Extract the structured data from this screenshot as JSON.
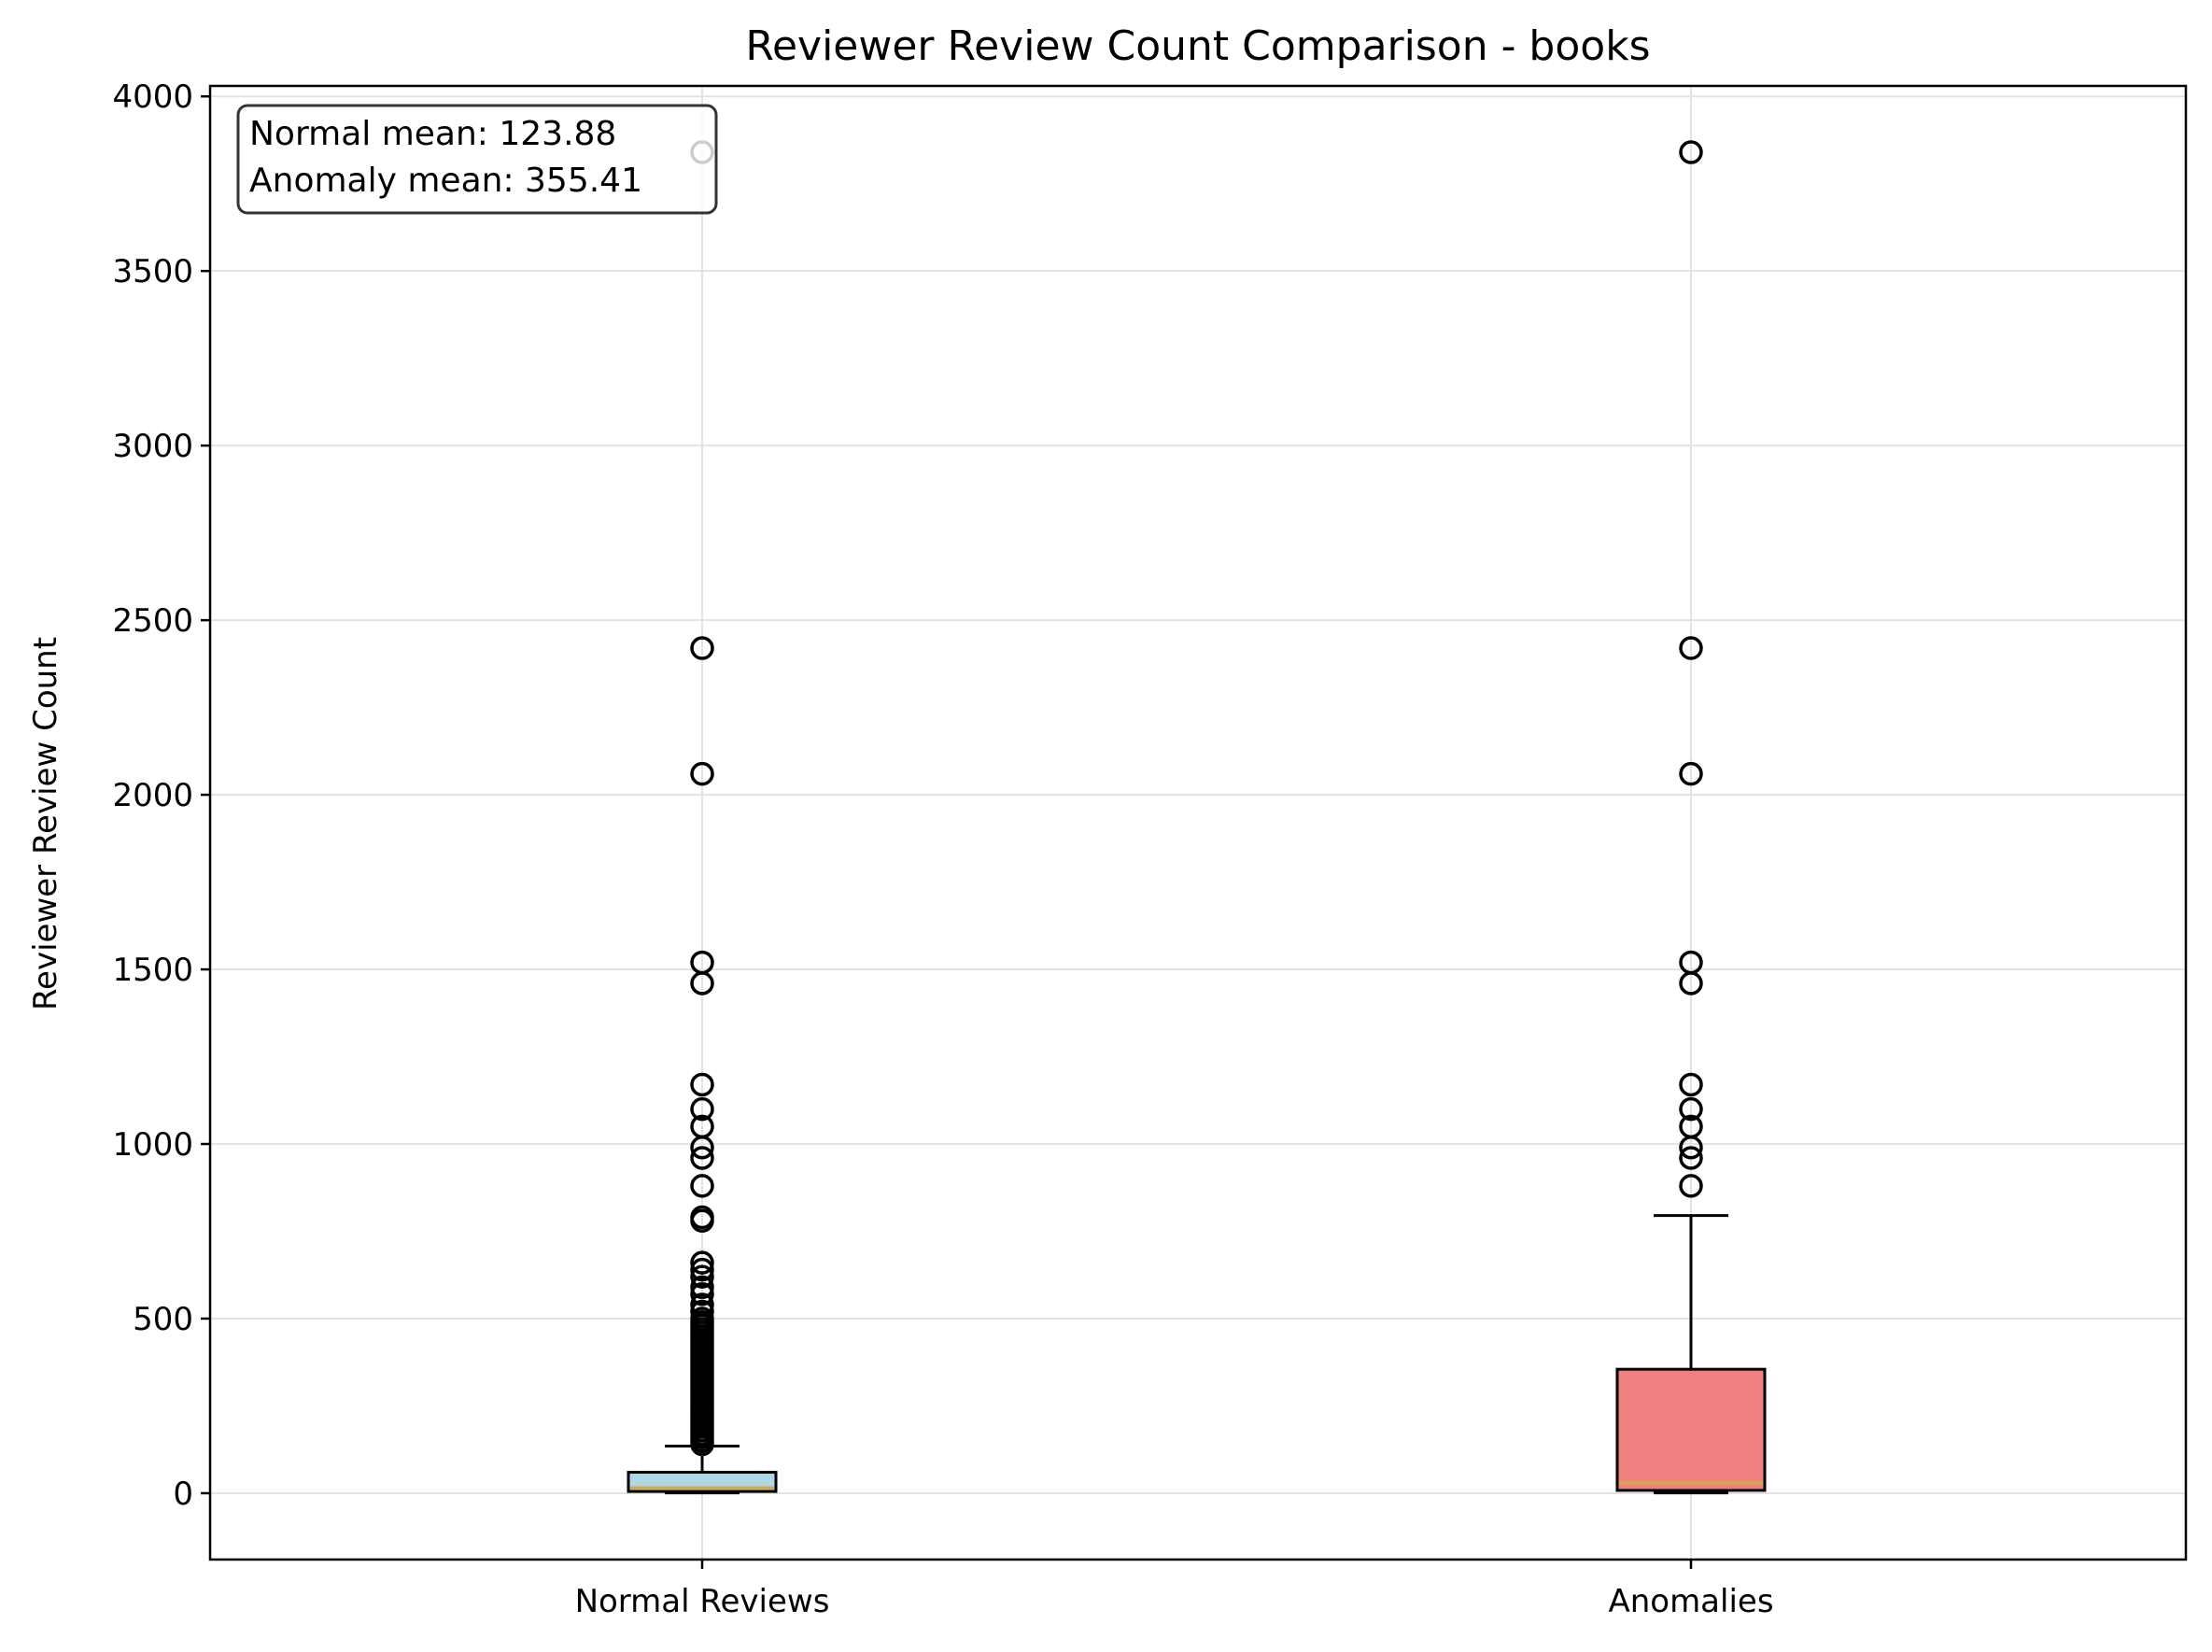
{
  "chart_data": {
    "type": "box",
    "title": "Reviewer Review Count Comparison - books",
    "xlabel": "",
    "ylabel": "Reviewer Review Count",
    "ylim": [
      -190,
      4030
    ],
    "yticks": [
      0,
      500,
      1000,
      1500,
      2000,
      2500,
      3000,
      3500,
      4000
    ],
    "grid": true,
    "categories": [
      "Normal Reviews",
      "Anomalies"
    ],
    "series": [
      {
        "category": "Normal Reviews",
        "color": "#add8e6",
        "median_color": "#d4a94a",
        "whisker_low": 1,
        "q1": 5,
        "median": 15,
        "q3": 60,
        "whisker_high": 135,
        "outliers": [
          140,
          150,
          160,
          170,
          180,
          190,
          200,
          210,
          220,
          230,
          240,
          250,
          260,
          270,
          280,
          290,
          300,
          310,
          320,
          330,
          340,
          350,
          360,
          370,
          380,
          390,
          400,
          410,
          420,
          430,
          440,
          450,
          460,
          470,
          480,
          490,
          500,
          520,
          540,
          570,
          590,
          620,
          640,
          660,
          780,
          790,
          880,
          960,
          990,
          1050,
          1100,
          1170,
          1460,
          1520,
          2060,
          2420,
          3840
        ]
      },
      {
        "category": "Anomalies",
        "color": "#f08080",
        "median_color": "#d4a94a",
        "whisker_low": 1,
        "q1": 8,
        "median": 30,
        "q3": 355,
        "whisker_high": 795,
        "outliers": [
          880,
          960,
          990,
          1050,
          1100,
          1170,
          1460,
          1520,
          2060,
          2420,
          3840
        ]
      }
    ],
    "annotation": {
      "lines": [
        "Normal mean: 123.88",
        "Anomaly mean: 355.41"
      ]
    }
  }
}
